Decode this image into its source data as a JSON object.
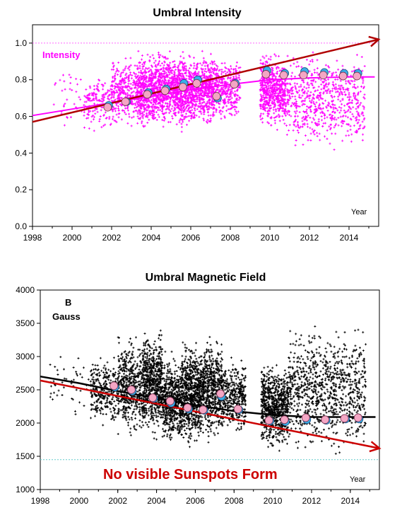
{
  "chart_data": [
    {
      "type": "scatter",
      "title": "Umbral Intensity",
      "series_label": "Intensity",
      "corner_label": "Year",
      "xlim": [
        1998,
        2015.5
      ],
      "ylim": [
        0,
        1.1
      ],
      "x_ticks": [
        1998,
        2000,
        2002,
        2004,
        2006,
        2008,
        2010,
        2012,
        2014
      ],
      "x_tick_labels": [
        "1998",
        "2000",
        "2002",
        "2004",
        "2006",
        "2008",
        "2010",
        "2012",
        "2014"
      ],
      "y_ticks": [
        0,
        0.2,
        0.4,
        0.6,
        0.8,
        1.0
      ],
      "y_tick_labels": [
        "0.0",
        "0.2",
        "0.4",
        "0.6",
        "0.8",
        "1.0"
      ],
      "reference_line": 1.0,
      "colors": {
        "points": "#ff00ff",
        "fit": "#ff00ff",
        "trend": "#b00000",
        "pink_marker": "#f4a6c4",
        "blue_marker": "#3ab0e8"
      },
      "scatter_clusters": [
        {
          "x": [
            1999.0,
            2000.5
          ],
          "y": [
            0.5,
            0.9
          ],
          "weight": 0.05
        },
        {
          "x": [
            2000.6,
            2002.0
          ],
          "y": [
            0.5,
            0.85
          ],
          "weight": 0.25
        },
        {
          "x": [
            2002.0,
            2003.3
          ],
          "y": [
            0.52,
            0.95
          ],
          "weight": 0.5
        },
        {
          "x": [
            2003.3,
            2004.2
          ],
          "y": [
            0.5,
            0.98
          ],
          "weight": 0.7
        },
        {
          "x": [
            2004.2,
            2005.2
          ],
          "y": [
            0.52,
            0.98
          ],
          "weight": 0.75
        },
        {
          "x": [
            2005.2,
            2006.2
          ],
          "y": [
            0.5,
            0.98
          ],
          "weight": 0.8
        },
        {
          "x": [
            2006.2,
            2007.2
          ],
          "y": [
            0.52,
            0.98
          ],
          "weight": 0.7
        },
        {
          "x": [
            2007.2,
            2008.5
          ],
          "y": [
            0.55,
            0.95
          ],
          "weight": 0.5
        },
        {
          "x": [
            2009.5,
            2010.8
          ],
          "y": [
            0.5,
            0.98
          ],
          "weight": 0.9
        },
        {
          "x": [
            2010.8,
            2014.8
          ],
          "y": [
            0.38,
            0.99
          ],
          "weight": 1.0
        }
      ],
      "fit_curve": {
        "x": [
          1998,
          2000,
          2002,
          2004,
          2006,
          2008,
          2010,
          2012,
          2014,
          2015.3
        ],
        "y": [
          0.605,
          0.64,
          0.675,
          0.71,
          0.745,
          0.775,
          0.8,
          0.81,
          0.815,
          0.815
        ]
      },
      "trend_arrow": {
        "x": [
          1998,
          2015.5
        ],
        "y": [
          0.57,
          1.02
        ]
      },
      "yearly_averages": [
        {
          "x": 2001.8,
          "pink": 0.65,
          "blue": 0.66
        },
        {
          "x": 2002.7,
          "pink": 0.68,
          "blue": 0.68
        },
        {
          "x": 2003.8,
          "pink": 0.72,
          "blue": 0.73
        },
        {
          "x": 2004.7,
          "pink": 0.74,
          "blue": 0.75
        },
        {
          "x": 2005.6,
          "pink": 0.76,
          "blue": 0.78
        },
        {
          "x": 2006.3,
          "pink": 0.78,
          "blue": 0.8
        },
        {
          "x": 2007.3,
          "pink": 0.71,
          "blue": 0.7
        },
        {
          "x": 2008.2,
          "pink": 0.775,
          "blue": 0.78
        },
        {
          "x": 2009.8,
          "pink": 0.83,
          "blue": 0.85
        },
        {
          "x": 2010.7,
          "pink": 0.825,
          "blue": 0.835
        },
        {
          "x": 2011.7,
          "pink": 0.825,
          "blue": 0.845
        },
        {
          "x": 2012.7,
          "pink": 0.825,
          "blue": 0.84
        },
        {
          "x": 2013.7,
          "pink": 0.82,
          "blue": 0.835
        },
        {
          "x": 2014.4,
          "pink": 0.82,
          "blue": 0.835
        }
      ]
    },
    {
      "type": "scatter",
      "title": "Umbral Magnetic Field",
      "series_label_line1": "B",
      "series_label_line2": "Gauss",
      "corner_label": "Year",
      "annotation": "No visible Sunspots Form",
      "xlim": [
        1998,
        2015.5
      ],
      "ylim": [
        1000,
        4000
      ],
      "x_ticks": [
        1998,
        2000,
        2002,
        2004,
        2006,
        2008,
        2010,
        2012,
        2014
      ],
      "x_tick_labels": [
        "1998",
        "2000",
        "2002",
        "2004",
        "2006",
        "2008",
        "2010",
        "2012",
        "2014"
      ],
      "y_ticks": [
        1000,
        1500,
        2000,
        2500,
        3000,
        3500,
        4000
      ],
      "y_tick_labels": [
        "1000",
        "1500",
        "2000",
        "2500",
        "3000",
        "3500",
        "4000"
      ],
      "reference_line": 1450,
      "colors": {
        "points": "#000000",
        "fit": "#000000",
        "trend": "#cc0000",
        "pink_marker": "#f4a6c4",
        "blue_marker": "#3ab0e8"
      },
      "scatter_clusters": [
        {
          "x": [
            1998.5,
            2000.5
          ],
          "y": [
            2050,
            3200
          ],
          "weight": 0.05
        },
        {
          "x": [
            2000.6,
            2002.0
          ],
          "y": [
            1850,
            3100
          ],
          "weight": 0.3
        },
        {
          "x": [
            2002.0,
            2003.3
          ],
          "y": [
            1700,
            3400
          ],
          "weight": 0.55
        },
        {
          "x": [
            2003.3,
            2004.3
          ],
          "y": [
            1700,
            3500
          ],
          "weight": 0.75
        },
        {
          "x": [
            2004.3,
            2005.3
          ],
          "y": [
            1600,
            3100
          ],
          "weight": 0.6
        },
        {
          "x": [
            2005.3,
            2006.3
          ],
          "y": [
            1550,
            3300
          ],
          "weight": 0.8
        },
        {
          "x": [
            2006.3,
            2007.4
          ],
          "y": [
            1650,
            3400
          ],
          "weight": 0.65
        },
        {
          "x": [
            2007.4,
            2008.6
          ],
          "y": [
            1750,
            3050
          ],
          "weight": 0.4
        },
        {
          "x": [
            2009.4,
            2010.8
          ],
          "y": [
            1500,
            3000
          ],
          "weight": 0.85
        },
        {
          "x": [
            2010.8,
            2014.8
          ],
          "y": [
            1400,
            3600
          ],
          "weight": 1.0
        }
      ],
      "fit_curve": {
        "x": [
          1998,
          2000,
          2002,
          2004,
          2006,
          2008,
          2010,
          2012,
          2014,
          2015.3
        ],
        "y": [
          2700,
          2600,
          2480,
          2370,
          2270,
          2180,
          2120,
          2090,
          2090,
          2090
        ]
      },
      "trend_arrow": {
        "x": [
          1998,
          2015.5
        ],
        "y": [
          2640,
          1620
        ]
      },
      "yearly_averages": [
        {
          "x": 2001.8,
          "pink": 2560,
          "blue": 2540
        },
        {
          "x": 2002.7,
          "pink": 2500,
          "blue": 2480
        },
        {
          "x": 2003.8,
          "pink": 2380,
          "blue": 2370
        },
        {
          "x": 2004.7,
          "pink": 2330,
          "blue": 2300
        },
        {
          "x": 2005.6,
          "pink": 2230,
          "blue": 2210
        },
        {
          "x": 2006.4,
          "pink": 2200,
          "blue": 2190
        },
        {
          "x": 2007.3,
          "pink": 2440,
          "blue": 2400
        },
        {
          "x": 2008.2,
          "pink": 2210,
          "blue": 2200
        },
        {
          "x": 2009.8,
          "pink": 2040,
          "blue": 2030
        },
        {
          "x": 2010.6,
          "pink": 2050,
          "blue": 2020
        },
        {
          "x": 2011.7,
          "pink": 2080,
          "blue": 2050
        },
        {
          "x": 2012.7,
          "pink": 2050,
          "blue": 2040
        },
        {
          "x": 2013.7,
          "pink": 2070,
          "blue": 2060
        },
        {
          "x": 2014.4,
          "pink": 2080,
          "blue": 2060
        }
      ]
    }
  ]
}
